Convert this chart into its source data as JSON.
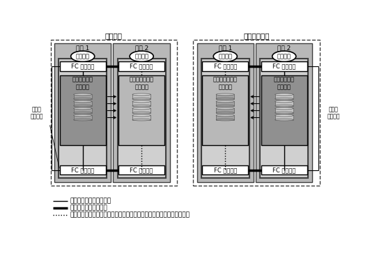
{
  "title_left": "初期構成",
  "title_right": "復旧した構成",
  "space1": "空間 1",
  "space2": "空間 2",
  "server": "サーバー",
  "fc_switch": "FC スイッチ",
  "primary_storage": "主ストレージ\nデバイス",
  "secondary_storage": "二次ストレージ\nデバイス",
  "quorum": "定足数\nデバイス",
  "legend1": "シングルモードファイバ",
  "legend2": "マルチモードファイバ",
  "legend3": "リンクは物理的に存在するが、手動スイッチオーバーまで使用されない",
  "dark_gray": "#909090",
  "medium_gray": "#b8b8b8",
  "light_gray": "#d0d0d0",
  "inner_dark": "#787878"
}
